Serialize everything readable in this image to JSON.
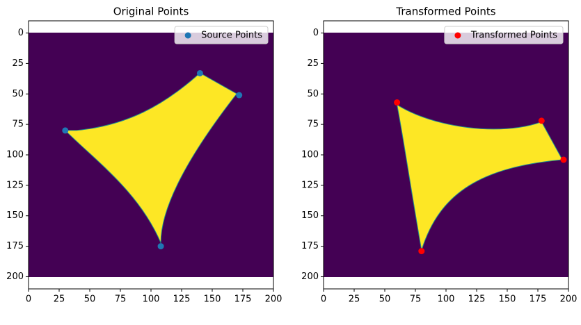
{
  "chart_data": [
    {
      "type": "scatter",
      "title": "Original Points",
      "series": [
        {
          "name": "Source Points",
          "color": "#1f77b4",
          "x": [
            30,
            140,
            172,
            108
          ],
          "values": [
            80,
            33,
            51,
            175
          ]
        }
      ],
      "xlim": [
        0,
        200
      ],
      "ylim": [
        210,
        -10
      ],
      "xticks": [
        0,
        25,
        50,
        75,
        100,
        125,
        150,
        175,
        200
      ],
      "yticks": [
        0,
        25,
        50,
        75,
        100,
        125,
        150,
        175,
        200
      ],
      "legend": "upper right"
    },
    {
      "type": "scatter",
      "title": "Transformed Points",
      "series": [
        {
          "name": "Transformed Points",
          "color": "#ff0000",
          "x": [
            60,
            178,
            196,
            80
          ],
          "values": [
            57,
            72,
            104,
            179
          ]
        }
      ],
      "xlim": [
        0,
        200
      ],
      "ylim": [
        210,
        -10
      ],
      "xticks": [
        0,
        25,
        50,
        75,
        100,
        125,
        150,
        175,
        200
      ],
      "yticks": [
        0,
        25,
        50,
        75,
        100,
        125,
        150,
        175,
        200
      ],
      "legend": "upper right"
    }
  ]
}
